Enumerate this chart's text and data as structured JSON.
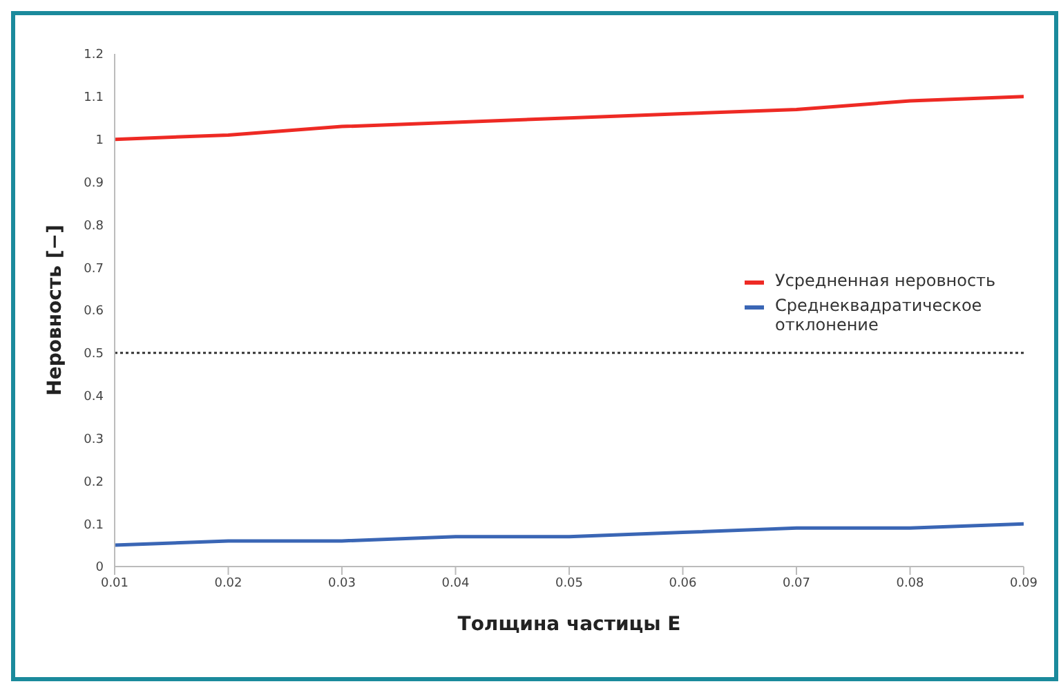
{
  "chart_data": {
    "type": "line",
    "xlabel": "Толщина частицы E",
    "ylabel": "Неровность [−]",
    "x": [
      0.01,
      0.02,
      0.03,
      0.04,
      0.05,
      0.06,
      0.07,
      0.08,
      0.09
    ],
    "series": [
      {
        "name": "Усредненная неровность",
        "color": "#ee2a24",
        "values": [
          1.0,
          1.01,
          1.03,
          1.04,
          1.05,
          1.06,
          1.07,
          1.09,
          1.1
        ]
      },
      {
        "name": "Среднеквадратическое отклонение",
        "color": "#3a66b5",
        "values": [
          0.05,
          0.06,
          0.06,
          0.07,
          0.07,
          0.08,
          0.09,
          0.09,
          0.1
        ]
      }
    ],
    "xlim": [
      0.01,
      0.09
    ],
    "xticks": [
      0.01,
      0.02,
      0.03,
      0.04,
      0.05,
      0.06,
      0.07,
      0.08,
      0.09
    ],
    "ylim": [
      0,
      1.2
    ],
    "yticks": [
      0,
      0.1,
      0.2,
      0.3,
      0.4,
      0.5,
      0.6,
      0.7,
      0.8,
      0.9,
      1,
      1.1,
      1.2
    ],
    "ref_lines": [
      {
        "axis": "y",
        "value": 0.5,
        "color": "#333333",
        "line_style": "dotted"
      }
    ],
    "grid": false,
    "legend": "right",
    "marker": "none",
    "line_style": "solid"
  }
}
